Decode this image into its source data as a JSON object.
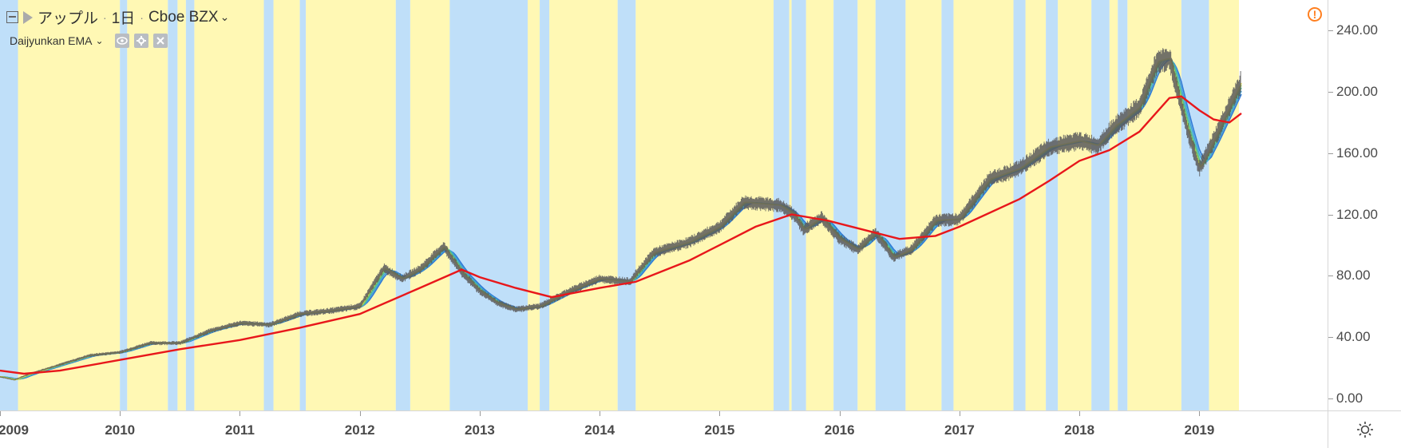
{
  "legend": {
    "symbol": "アップル",
    "interval": "1日",
    "exchange": "Cboe BZX",
    "indicator": "Daijyunkan EMA",
    "sep": "·",
    "caret": "⌄"
  },
  "icons": {
    "collapse": "collapse-icon",
    "flag": "flag-icon",
    "eye": "eye-icon",
    "settings": "gear-icon",
    "close": "close-icon",
    "warning": "warning-icon",
    "sun": "sun-icon"
  },
  "colors": {
    "uptrend_band": "#fff8b4",
    "downtrend_band": "#bfdff9",
    "ema_long": "#e8171b",
    "ema_ribbon": [
      "#2f7ad6",
      "#3ea2d8",
      "#4fc08d",
      "#9bd25a",
      "#e9e047"
    ],
    "candles": "#5a5a5a",
    "warning": "#ff7f1f"
  },
  "chart_data": {
    "type": "line",
    "title": "アップル · 1日 · Cboe BZX",
    "xlabel": "",
    "ylabel": "",
    "xlim": [
      2009.0,
      2019.35
    ],
    "ylim": [
      -8,
      260
    ],
    "y_ticks": [
      "240.00",
      "200.00",
      "160.00",
      "120.00",
      "80.00",
      "40.00",
      "0.00"
    ],
    "x_ticks": [
      "2009",
      "2010",
      "2011",
      "2012",
      "2013",
      "2014",
      "2015",
      "2016",
      "2017",
      "2018",
      "2019"
    ],
    "grid": false,
    "legend": "top-left",
    "series": [
      {
        "name": "price",
        "x": [
          2009.0,
          2009.12,
          2009.25,
          2009.5,
          2009.75,
          2010.0,
          2010.25,
          2010.5,
          2010.75,
          2011.0,
          2011.25,
          2011.5,
          2011.75,
          2012.0,
          2012.2,
          2012.35,
          2012.5,
          2012.7,
          2012.85,
          2013.0,
          2013.15,
          2013.3,
          2013.5,
          2013.75,
          2014.0,
          2014.25,
          2014.45,
          2014.75,
          2015.0,
          2015.2,
          2015.5,
          2015.62,
          2015.7,
          2015.85,
          2016.0,
          2016.15,
          2016.3,
          2016.45,
          2016.6,
          2016.8,
          2017.0,
          2017.25,
          2017.5,
          2017.75,
          2018.0,
          2018.15,
          2018.3,
          2018.5,
          2018.65,
          2018.75,
          2018.9,
          2019.0,
          2019.1,
          2019.25,
          2019.35
        ],
        "y": [
          14,
          12,
          16,
          22,
          28,
          30,
          36,
          36,
          44,
          49,
          48,
          55,
          57,
          60,
          85,
          78,
          84,
          99,
          82,
          70,
          62,
          58,
          60,
          70,
          78,
          76,
          95,
          102,
          112,
          128,
          126,
          120,
          110,
          118,
          104,
          97,
          108,
          92,
          97,
          116,
          117,
          143,
          150,
          164,
          168,
          165,
          178,
          190,
          220,
          222,
          175,
          150,
          165,
          190,
          207
        ]
      },
      {
        "name": "EMA long",
        "x": [
          2009.0,
          2009.2,
          2009.5,
          2010.0,
          2010.5,
          2011.0,
          2011.5,
          2012.0,
          2012.5,
          2012.85,
          2013.0,
          2013.3,
          2013.6,
          2014.0,
          2014.3,
          2014.75,
          2015.0,
          2015.3,
          2015.6,
          2015.9,
          2016.2,
          2016.5,
          2016.8,
          2017.0,
          2017.5,
          2017.75,
          2018.0,
          2018.25,
          2018.5,
          2018.75,
          2018.85,
          2019.0,
          2019.12,
          2019.25,
          2019.35
        ],
        "y": [
          18,
          16,
          18,
          25,
          32,
          38,
          46,
          55,
          72,
          84,
          79,
          72,
          66,
          72,
          76,
          90,
          100,
          112,
          120,
          116,
          110,
          104,
          106,
          112,
          130,
          142,
          155,
          162,
          174,
          196,
          197,
          188,
          182,
          180,
          186
        ]
      }
    ],
    "uptrend_background_ranges": [
      [
        2009.15,
        2010.0
      ],
      [
        2010.06,
        2010.4
      ],
      [
        2010.48,
        2010.55
      ],
      [
        2010.62,
        2011.2
      ],
      [
        2011.28,
        2011.5
      ],
      [
        2011.55,
        2012.3
      ],
      [
        2012.42,
        2012.75
      ],
      [
        2013.4,
        2013.5
      ],
      [
        2013.58,
        2014.15
      ],
      [
        2014.3,
        2015.45
      ],
      [
        2015.58,
        2015.6
      ],
      [
        2015.72,
        2015.95
      ],
      [
        2016.15,
        2016.3
      ],
      [
        2016.55,
        2016.85
      ],
      [
        2016.95,
        2017.45
      ],
      [
        2017.55,
        2017.72
      ],
      [
        2017.82,
        2018.1
      ],
      [
        2018.25,
        2018.32
      ],
      [
        2018.4,
        2018.85
      ],
      [
        2019.08,
        2019.33
      ]
    ],
    "downtrend_background_ranges": [
      [
        2009.0,
        2009.15
      ],
      [
        2010.0,
        2010.06
      ],
      [
        2010.4,
        2010.48
      ],
      [
        2010.55,
        2010.62
      ],
      [
        2011.2,
        2011.28
      ],
      [
        2011.5,
        2011.55
      ],
      [
        2012.3,
        2012.42
      ],
      [
        2012.75,
        2013.4
      ],
      [
        2013.5,
        2013.58
      ],
      [
        2014.15,
        2014.3
      ],
      [
        2015.45,
        2015.58
      ],
      [
        2015.6,
        2015.72
      ],
      [
        2015.95,
        2016.15
      ],
      [
        2016.3,
        2016.55
      ],
      [
        2016.85,
        2016.95
      ],
      [
        2017.45,
        2017.55
      ],
      [
        2017.72,
        2017.82
      ],
      [
        2018.1,
        2018.25
      ],
      [
        2018.32,
        2018.4
      ],
      [
        2018.85,
        2019.08
      ]
    ]
  }
}
